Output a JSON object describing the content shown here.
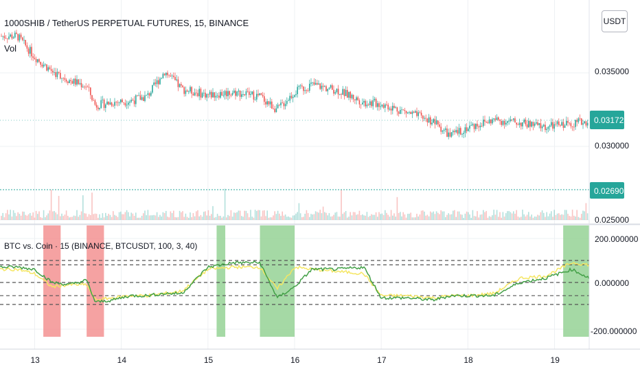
{
  "header": {
    "title": "1000SHIB / TetherUS PERPETUAL FUTURES, 15, BINANCE",
    "volume_label": "Vol",
    "currency_button": "USDT"
  },
  "price_axis": {
    "ticks": [
      "0.035000",
      "0.030000",
      "0.025000"
    ],
    "last_price_badge": "0.031728",
    "volume_line_badge": "0.026903",
    "last_price_color": "#26a69a"
  },
  "indicator": {
    "title": "BTC vs. Coin · 15 (BINANCE, BTCUSDT, 100, 3, 40)",
    "axis_ticks": [
      "200.000000",
      "0.000000",
      "-200.000000"
    ]
  },
  "time_axis": {
    "labels": [
      "13",
      "14",
      "15",
      "16",
      "17",
      "18",
      "19"
    ]
  },
  "colors": {
    "up": "#26a69a",
    "down": "#ef5350",
    "highlight_red": "#f28b8b",
    "highlight_green": "#8fcf8f",
    "line_green": "#43a047",
    "line_yellow": "#f5e663"
  },
  "chart_data": [
    {
      "type": "candlestick",
      "title": "1000SHIB / TetherUS PERPETUAL FUTURES, 15, BINANCE",
      "x_range": [
        "13",
        "19"
      ],
      "ylim": [
        0.025,
        0.038
      ],
      "last_price": 0.031728,
      "series": [
        {
          "name": "price",
          "x": [
            "12.8",
            "13.0",
            "13.2",
            "13.4",
            "13.6",
            "13.7",
            "13.9",
            "14.1",
            "14.3",
            "14.5",
            "14.7",
            "15.0",
            "15.3",
            "15.6",
            "15.8",
            "16.0",
            "16.2",
            "16.5",
            "16.8",
            "17.0",
            "17.3",
            "17.6",
            "17.8",
            "18.0",
            "18.3",
            "18.6",
            "18.9",
            "19.2",
            "19.4"
          ],
          "values": [
            0.0375,
            0.0361,
            0.0351,
            0.0345,
            0.0341,
            0.0328,
            0.033,
            0.0331,
            0.0334,
            0.0351,
            0.0339,
            0.0335,
            0.0337,
            0.0334,
            0.0325,
            0.0337,
            0.0342,
            0.0338,
            0.033,
            0.0329,
            0.0323,
            0.0317,
            0.0307,
            0.0313,
            0.0318,
            0.0316,
            0.0313,
            0.0316,
            0.0317
          ]
        }
      ]
    },
    {
      "type": "line",
      "title": "BTC vs. Coin · 15 (BINANCE, BTCUSDT, 100, 3, 40)",
      "ylim": [
        -200,
        200
      ],
      "reference_levels": [
        100,
        80,
        0,
        -60,
        -100
      ],
      "highlight_bands": [
        {
          "from": "13.1",
          "to": "13.3",
          "color": "red"
        },
        {
          "from": "13.6",
          "to": "13.8",
          "color": "red"
        },
        {
          "from": "15.1",
          "to": "15.2",
          "color": "green"
        },
        {
          "from": "15.6",
          "to": "16.0",
          "color": "green"
        },
        {
          "from": "19.1",
          "to": "19.4",
          "color": "green"
        }
      ],
      "series": [
        {
          "x": [
            "12.8",
            "13.0",
            "13.2",
            "13.4",
            "13.6",
            "13.7",
            "13.9",
            "14.1",
            "14.3",
            "14.5",
            "14.7",
            "15.0",
            "15.3",
            "15.6",
            "15.8",
            "16.0",
            "16.2",
            "16.5",
            "16.8",
            "17.0",
            "17.3",
            "17.6",
            "17.8",
            "18.0",
            "18.3",
            "18.6",
            "18.9",
            "19.2",
            "19.4"
          ],
          "values": [
            70,
            60,
            0,
            -10,
            10,
            -90,
            -80,
            -60,
            -60,
            -50,
            -50,
            70,
            90,
            90,
            -70,
            -20,
            60,
            60,
            70,
            -70,
            -70,
            -80,
            -60,
            -60,
            -60,
            0,
            20,
            60,
            20
          ]
        },
        {
          "x": [
            "12.8",
            "13.0",
            "13.2",
            "13.4",
            "13.6",
            "13.7",
            "13.9",
            "14.1",
            "14.3",
            "14.5",
            "14.7",
            "15.0",
            "15.3",
            "15.6",
            "15.8",
            "16.0",
            "16.2",
            "16.5",
            "16.8",
            "17.0",
            "17.3",
            "17.6",
            "17.8",
            "18.0",
            "18.3",
            "18.6",
            "18.9",
            "19.2",
            "19.4"
          ],
          "values": [
            60,
            40,
            -20,
            -10,
            -10,
            -80,
            -70,
            -60,
            -60,
            -50,
            -40,
            60,
            70,
            70,
            -30,
            70,
            60,
            50,
            40,
            -60,
            -60,
            -70,
            -60,
            -60,
            -50,
            20,
            30,
            90,
            80
          ]
        }
      ]
    }
  ]
}
